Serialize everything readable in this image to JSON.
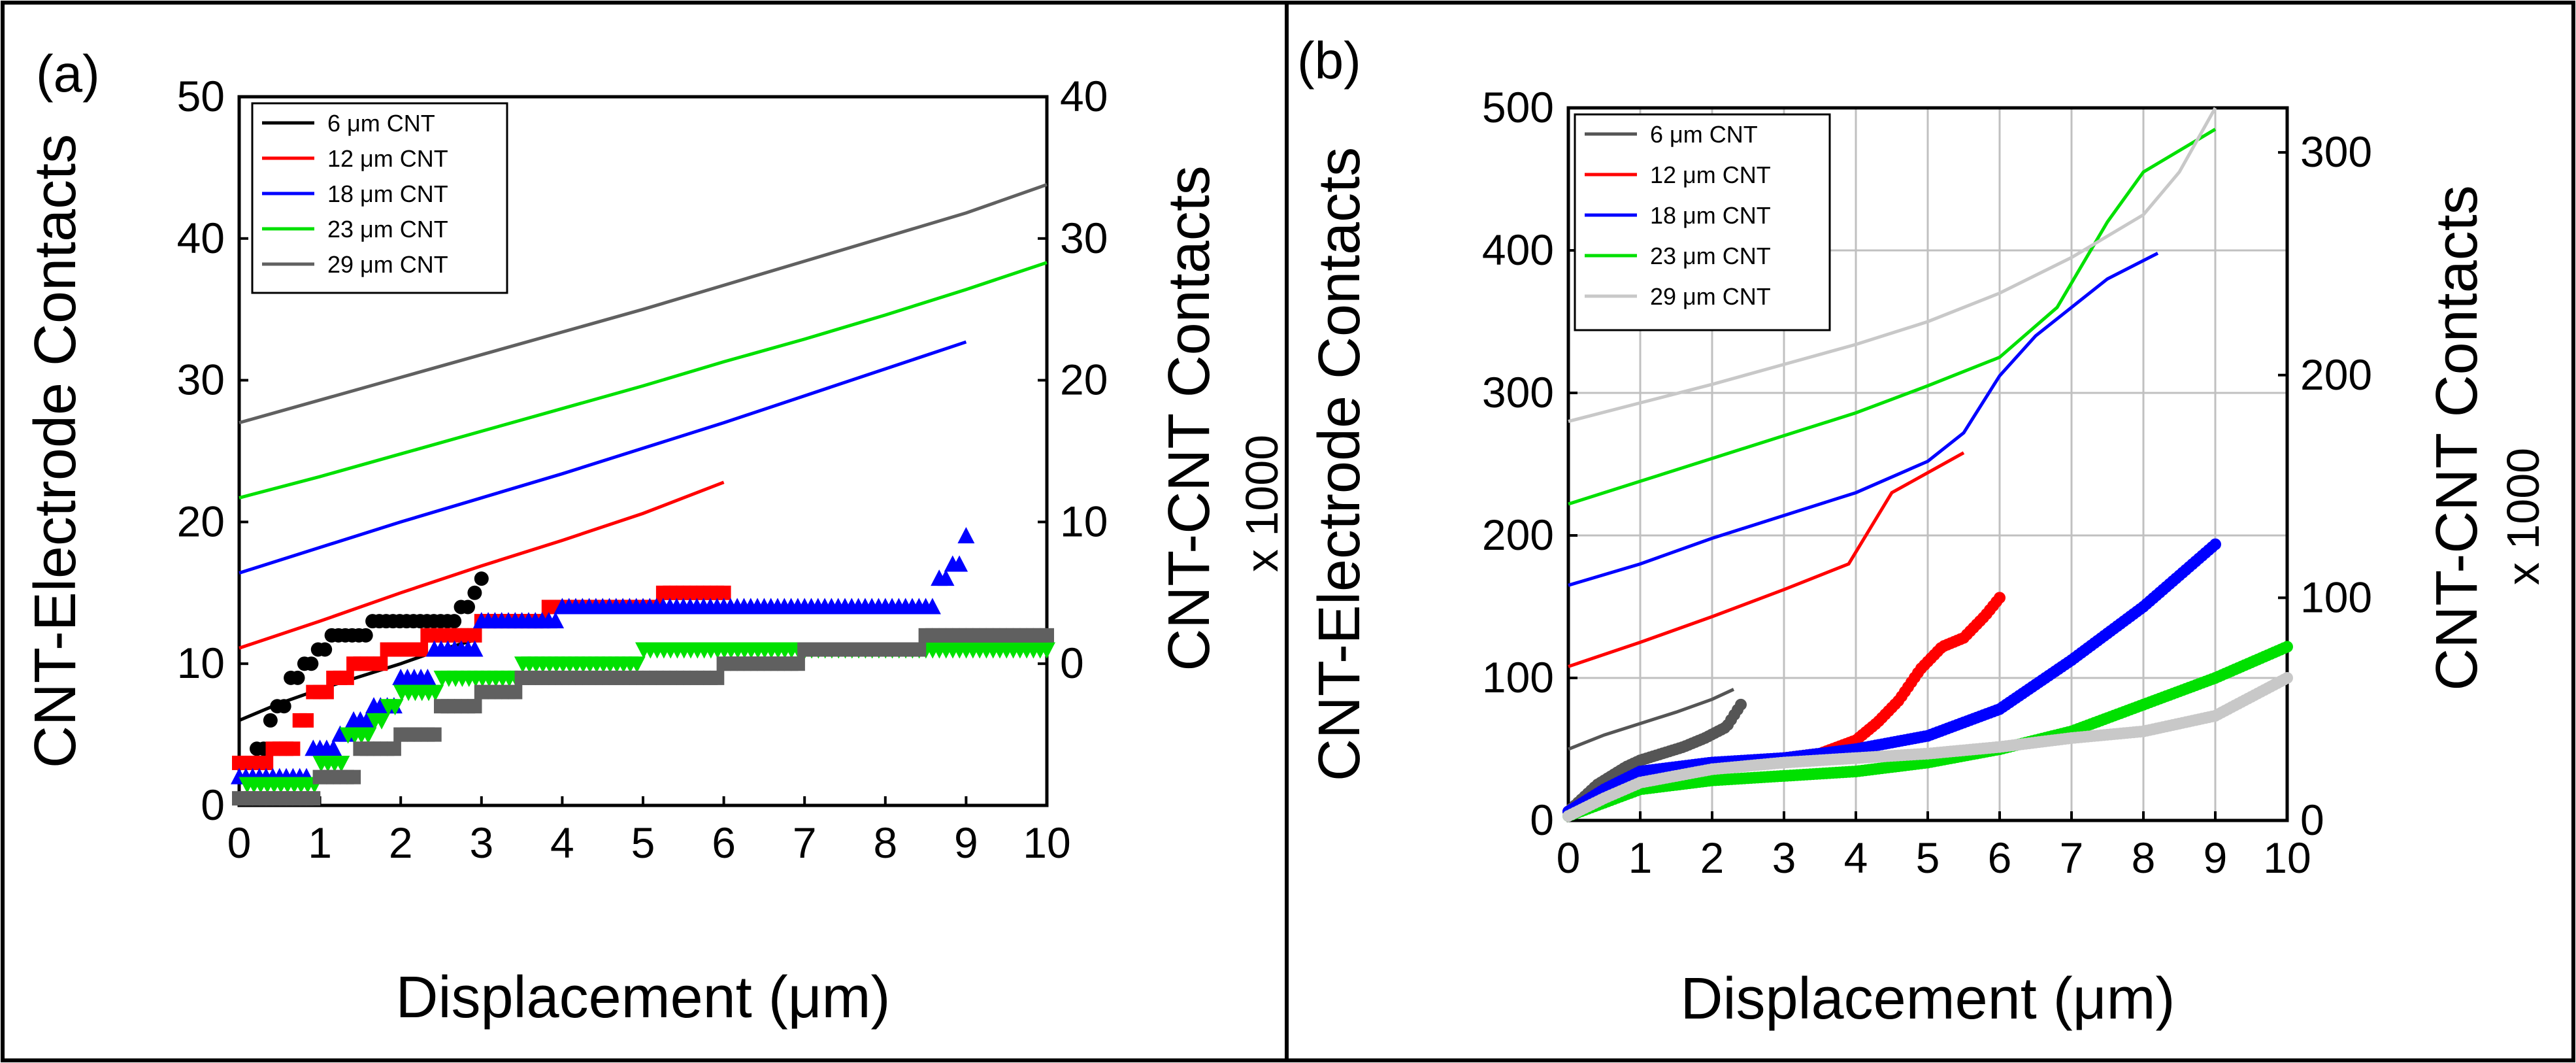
{
  "figure": {
    "panel_labels": [
      "(a)",
      "(b)"
    ]
  },
  "chart_data": [
    {
      "panel": "(a)",
      "type": "line",
      "title": "",
      "xlabel": "Displacement (μm)",
      "ylabel_left": "CNT-Electrode Contacts",
      "ylabel_right": "CNT-CNT Contacts",
      "ylabel_right_scale": "x 1000",
      "xlim": [
        0,
        10
      ],
      "ylim_left": [
        0,
        50
      ],
      "ylim_right": [
        -10,
        40
      ],
      "grid": false,
      "legend_position": "top-left",
      "x_ticks": [
        "0",
        "1",
        "2",
        "3",
        "4",
        "5",
        "6",
        "7",
        "8",
        "9",
        "10"
      ],
      "y_left_ticks": [
        "0",
        "10",
        "20",
        "30",
        "40",
        "50"
      ],
      "y_right_ticks": [
        "0",
        "10",
        "20",
        "30",
        "40"
      ],
      "series": [
        {
          "name": "6 μm CNT",
          "color": "#000000",
          "cnt_cnt": {
            "x": [
              0,
              0.5,
              1,
              1.5,
              2,
              2.5,
              3
            ],
            "y": [
              -4,
              -2.8,
              -1.8,
              -0.9,
              0,
              1,
              1.8
            ]
          },
          "electrode": {
            "x": [
              0.05,
              0.2,
              0.35,
              0.45,
              0.6,
              0.75,
              0.9,
              1.1,
              1.3,
              1.6,
              2.0,
              2.4,
              2.7,
              2.9,
              3.0
            ],
            "y": [
              3,
              4,
              6,
              7,
              9,
              10,
              11,
              12,
              12,
              13,
              13,
              13,
              14,
              15,
              16
            ]
          }
        },
        {
          "name": "12 μm CNT",
          "color": "#ff0000",
          "cnt_cnt": {
            "x": [
              0,
              1,
              2,
              3,
              4,
              5,
              6
            ],
            "y": [
              1.1,
              3.0,
              5.0,
              6.9,
              8.7,
              10.6,
              12.8
            ]
          },
          "electrode": {
            "x": [
              0,
              0.4,
              0.7,
              0.9,
              1.1,
              1.4,
              1.8,
              2.3,
              3.0,
              3.8,
              4.5,
              5.2,
              6.0
            ],
            "y": [
              3,
              4,
              6,
              8,
              9,
              10,
              11,
              12,
              13,
              14,
              14,
              15,
              15
            ]
          }
        },
        {
          "name": "18 μm CNT",
          "color": "#0000ff",
          "cnt_cnt": {
            "x": [
              0,
              1,
              2,
              3,
              4,
              5,
              6,
              7,
              8,
              9
            ],
            "y": [
              6.4,
              8.2,
              10.0,
              11.7,
              13.4,
              15.2,
              17.0,
              18.9,
              20.8,
              22.7
            ]
          },
          "electrode": {
            "x": [
              0,
              0.5,
              0.9,
              1.2,
              1.4,
              1.6,
              2.0,
              2.4,
              3.0,
              4.0,
              5.0,
              6.0,
              7.0,
              8.0,
              8.6,
              8.8,
              9.0
            ],
            "y": [
              2,
              2,
              4,
              5,
              6,
              7,
              9,
              11,
              13,
              14,
              14,
              14,
              14,
              14,
              16,
              17,
              19
            ]
          }
        },
        {
          "name": "23 μm CNT",
          "color": "#00e000",
          "cnt_cnt": {
            "x": [
              0,
              1,
              2,
              3,
              4,
              5,
              6,
              7,
              8,
              9,
              10
            ],
            "y": [
              11.7,
              13.2,
              14.8,
              16.4,
              18.0,
              19.6,
              21.3,
              22.9,
              24.6,
              26.4,
              28.3
            ]
          },
          "electrode": {
            "x": [
              0.1,
              0.6,
              1.0,
              1.3,
              1.6,
              1.8,
              2.0,
              2.5,
              3.0,
              3.5,
              4.0,
              5.0,
              6.0,
              7.0,
              8.0,
              9.0,
              10.0
            ],
            "y": [
              1.5,
              1.5,
              3,
              5,
              6,
              7,
              8,
              9,
              9,
              10,
              10,
              11,
              11,
              11,
              11,
              11,
              11
            ]
          }
        },
        {
          "name": "29 μm CNT",
          "color": "#606060",
          "cnt_cnt": {
            "x": [
              0,
              1,
              2,
              3,
              4,
              5,
              6,
              7,
              8,
              9,
              10
            ],
            "y": [
              17.0,
              18.6,
              20.2,
              21.8,
              23.4,
              25.0,
              26.7,
              28.4,
              30.1,
              31.8,
              33.8
            ]
          },
          "electrode": {
            "x": [
              0,
              0.5,
              1.0,
              1.5,
              2.0,
              2.5,
              3.0,
              3.5,
              4.0,
              5.0,
              6.0,
              7.0,
              8.0,
              8.5,
              9.0,
              10.0
            ],
            "y": [
              0.5,
              0.5,
              2,
              4,
              5,
              7,
              8,
              9,
              9,
              9,
              10,
              11,
              11,
              12,
              12,
              12
            ]
          }
        }
      ]
    },
    {
      "panel": "(b)",
      "type": "line",
      "title": "",
      "xlabel": "Displacement (μm)",
      "ylabel_left": "CNT-Electrode Contacts",
      "ylabel_right": "CNT-CNT Contacts",
      "ylabel_right_scale": "x 1000",
      "xlim": [
        0,
        10
      ],
      "ylim_left": [
        0,
        500
      ],
      "ylim_right": [
        0,
        320
      ],
      "grid": true,
      "legend_position": "top-left",
      "x_ticks": [
        "0",
        "1",
        "2",
        "3",
        "4",
        "5",
        "6",
        "7",
        "8",
        "9",
        "10"
      ],
      "y_left_ticks": [
        "0",
        "100",
        "200",
        "300",
        "400",
        "500"
      ],
      "y_right_ticks": [
        "0",
        "100",
        "200",
        "300"
      ],
      "series": [
        {
          "name": "6 μm CNT",
          "color": "#555555",
          "electrode": {
            "x": [
              0,
              0.5,
              1,
              1.5,
              2,
              2.3
            ],
            "y": [
              50,
              60,
              68,
              76,
              85,
              92
            ]
          },
          "cnt_cnt": {
            "x": [
              0,
              0.2,
              0.4,
              0.6,
              0.8,
              1.0,
              1.3,
              1.6,
              1.9,
              2.2,
              2.4
            ],
            "y": [
              4,
              10,
              16,
              20,
              24,
              27,
              30,
              33,
              37,
              42,
              52
            ]
          }
        },
        {
          "name": "12 μm CNT",
          "color": "#ff0000",
          "electrode": {
            "x": [
              0,
              1,
              2,
              3,
              3.9,
              4.2,
              4.5,
              5.0,
              5.5
            ],
            "y": [
              108,
              125,
              143,
              162,
              180,
              205,
              230,
              244,
              258
            ]
          },
          "cnt_cnt": {
            "x": [
              0,
              0.5,
              1,
              2,
              3,
              3.5,
              4.0,
              4.3,
              4.6,
              4.9,
              5.2,
              5.5,
              5.8,
              6.0
            ],
            "y": [
              4,
              14,
              20,
              24,
              28,
              30,
              36,
              44,
              54,
              68,
              78,
              82,
              92,
              100
            ]
          }
        },
        {
          "name": "18 μm CNT",
          "color": "#0000ff",
          "electrode": {
            "x": [
              0,
              1,
              2,
              3,
              4,
              5,
              5.5,
              6.0,
              6.5,
              7.0,
              7.5,
              8.2
            ],
            "y": [
              165,
              180,
              198,
              214,
              230,
              252,
              272,
              312,
              340,
              360,
              380,
              398
            ]
          },
          "cnt_cnt": {
            "x": [
              0,
              0.5,
              1,
              2,
              3,
              4,
              5,
              6,
              7,
              8,
              9
            ],
            "y": [
              4,
              14,
              22,
              26,
              28,
              32,
              38,
              50,
              72,
              96,
              124
            ]
          }
        },
        {
          "name": "23 μm CNT",
          "color": "#00e000",
          "electrode": {
            "x": [
              0,
              1,
              2,
              3,
              4,
              5,
              6,
              6.8,
              7.5,
              8.0,
              9.0
            ],
            "y": [
              222,
              238,
              254,
              270,
              286,
              305,
              325,
              360,
              420,
              455,
              485
            ]
          },
          "cnt_cnt": {
            "x": [
              0,
              0.5,
              1,
              2,
              3,
              4,
              5,
              6,
              7,
              8,
              9,
              10
            ],
            "y": [
              2,
              8,
              14,
              18,
              20,
              22,
              26,
              32,
              40,
              52,
              64,
              78
            ]
          }
        },
        {
          "name": "29 μm CNT",
          "color": "#c8c8c8",
          "electrode": {
            "x": [
              0,
              1,
              2,
              3,
              4,
              5,
              6,
              7,
              8,
              8.5,
              9.0
            ],
            "y": [
              280,
              293,
              306,
              320,
              334,
              350,
              370,
              395,
              425,
              455,
              500
            ]
          },
          "cnt_cnt": {
            "x": [
              0,
              0.5,
              1,
              2,
              3,
              4,
              5,
              6,
              7,
              8,
              9,
              10
            ],
            "y": [
              2,
              10,
              17,
              23,
              26,
              28,
              30,
              33,
              37,
              40,
              47,
              64
            ]
          }
        }
      ]
    }
  ]
}
